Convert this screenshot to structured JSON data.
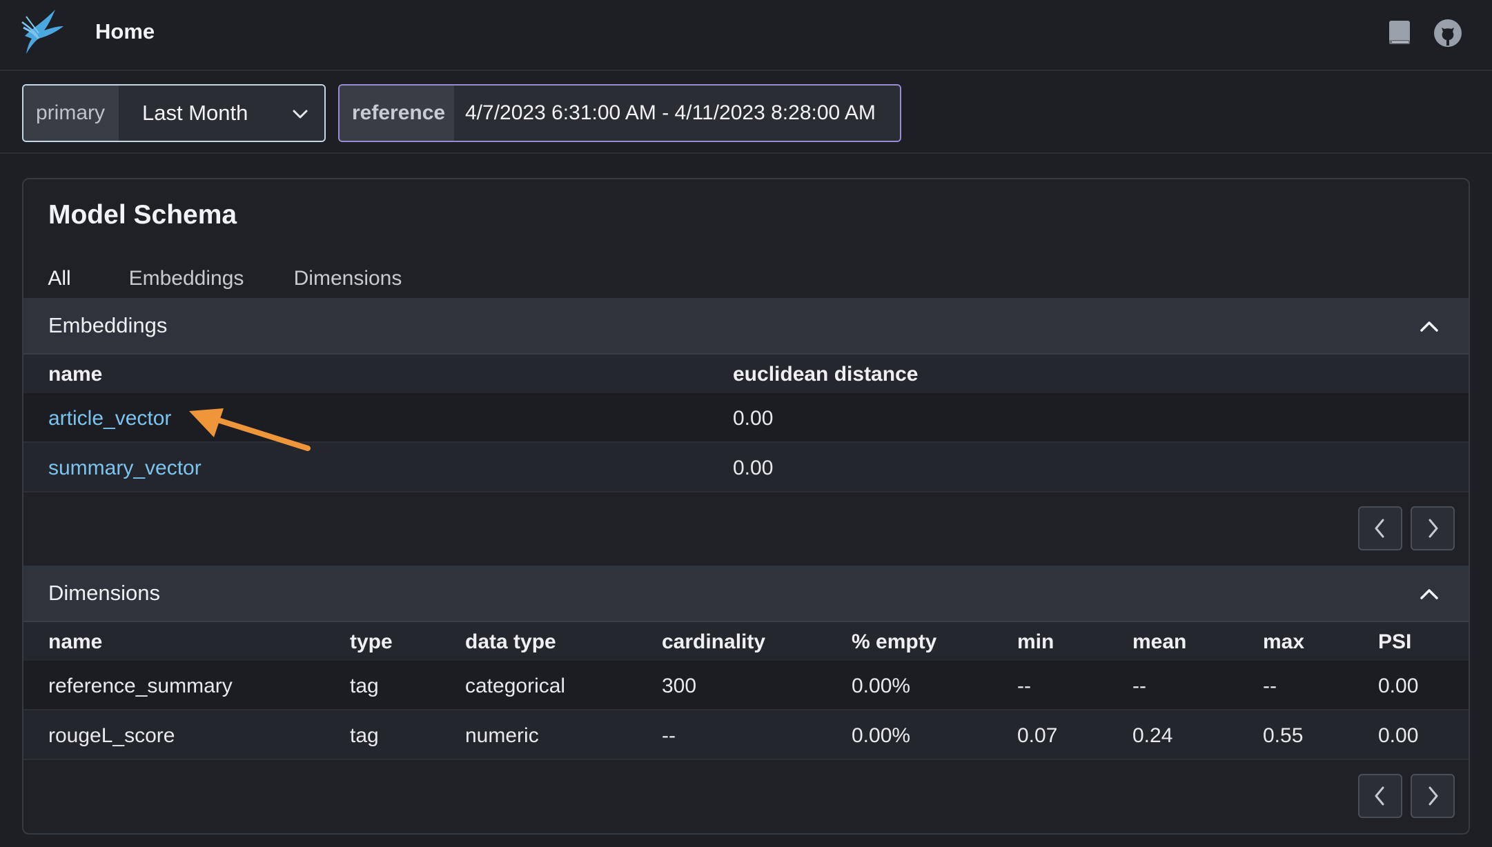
{
  "header": {
    "title": "Home",
    "logo_icon": "phoenix-bird-logo",
    "docs_icon": "book-icon",
    "github_icon": "github-icon"
  },
  "filters": {
    "primary": {
      "label": "primary",
      "value": "Last Month"
    },
    "reference": {
      "label": "reference",
      "value": "4/7/2023 6:31:00 AM - 4/11/2023 8:28:00 AM"
    }
  },
  "schema": {
    "title": "Model Schema",
    "tabs": [
      {
        "label": "All",
        "active": true
      },
      {
        "label": "Embeddings",
        "active": false
      },
      {
        "label": "Dimensions",
        "active": false
      }
    ],
    "embeddings": {
      "title": "Embeddings",
      "columns": [
        "name",
        "euclidean distance"
      ],
      "rows": [
        {
          "name": "article_vector",
          "euclidean_distance": "0.00"
        },
        {
          "name": "summary_vector",
          "euclidean_distance": "0.00"
        }
      ]
    },
    "dimensions": {
      "title": "Dimensions",
      "columns": [
        "name",
        "type",
        "data type",
        "cardinality",
        "% empty",
        "min",
        "mean",
        "max",
        "PSI"
      ],
      "rows": [
        {
          "name": "reference_summary",
          "type": "tag",
          "data_type": "categorical",
          "cardinality": "300",
          "empty": "0.00%",
          "min": "--",
          "mean": "--",
          "max": "--",
          "psi": "0.00"
        },
        {
          "name": "rougeL_score",
          "type": "tag",
          "data_type": "numeric",
          "cardinality": "--",
          "empty": "0.00%",
          "min": "0.07",
          "mean": "0.24",
          "max": "0.55",
          "psi": "0.00"
        }
      ]
    }
  },
  "colors": {
    "accent": "#4fa3e0",
    "link": "#7cc4f0",
    "annotation_arrow": "#f0963a"
  }
}
